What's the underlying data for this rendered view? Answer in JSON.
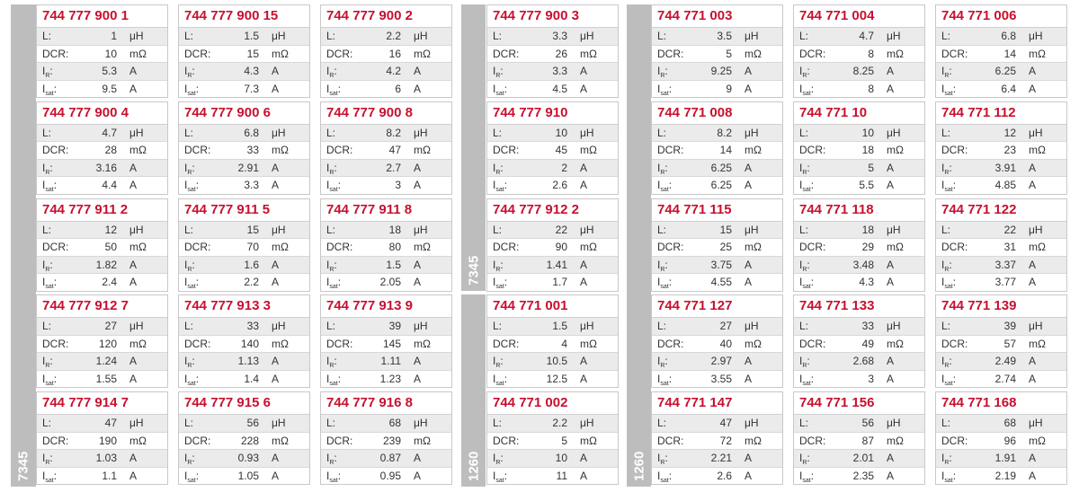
{
  "row_labels": {
    "L": "L:",
    "DCR": "DCR:",
    "IR_main": "I",
    "IR_sub": "R",
    "Isat_main": "I",
    "Isat_sub": "sat",
    "colon": ":"
  },
  "units": {
    "L": "μH",
    "DCR": "mΩ",
    "IR": "A",
    "Isat": "A"
  },
  "colors": {
    "part_number": "#c8102e",
    "sidebar": "#bdbdbd",
    "stripe": "#ebebeb"
  },
  "sidebars": [
    {
      "label": "7345"
    },
    {
      "label": "7345"
    },
    {
      "label": "1260"
    },
    {
      "label": "1260"
    }
  ],
  "groups": [
    {
      "cards": [
        {
          "part": "744 777 900 1",
          "L": "1",
          "DCR": "10",
          "IR": "5.3",
          "Isat": "9.5"
        },
        {
          "part": "744 777 900 15",
          "L": "1.5",
          "DCR": "15",
          "IR": "4.3",
          "Isat": "7.3"
        },
        {
          "part": "744 777 900 2",
          "L": "2.2",
          "DCR": "16",
          "IR": "4.2",
          "Isat": "6"
        },
        {
          "part": "744 777 900 4",
          "L": "4.7",
          "DCR": "28",
          "IR": "3.16",
          "Isat": "4.4"
        },
        {
          "part": "744 777 900 6",
          "L": "6.8",
          "DCR": "33",
          "IR": "2.91",
          "Isat": "3.3"
        },
        {
          "part": "744 777 900 8",
          "L": "8.2",
          "DCR": "47",
          "IR": "2.7",
          "Isat": "3"
        },
        {
          "part": "744 777 911 2",
          "L": "12",
          "DCR": "50",
          "IR": "1.82",
          "Isat": "2.4"
        },
        {
          "part": "744 777 911 5",
          "L": "15",
          "DCR": "70",
          "IR": "1.6",
          "Isat": "2.2"
        },
        {
          "part": "744 777 911 8",
          "L": "18",
          "DCR": "80",
          "IR": "1.5",
          "Isat": "2.05"
        },
        {
          "part": "744 777 912 7",
          "L": "27",
          "DCR": "120",
          "IR": "1.24",
          "Isat": "1.55"
        },
        {
          "part": "744 777 913 3",
          "L": "33",
          "DCR": "140",
          "IR": "1.13",
          "Isat": "1.4"
        },
        {
          "part": "744 777 913 9",
          "L": "39",
          "DCR": "145",
          "IR": "1.11",
          "Isat": "1.23"
        },
        {
          "part": "744 777 914 7",
          "L": "47",
          "DCR": "190",
          "IR": "1.03",
          "Isat": "1.1"
        },
        {
          "part": "744 777 915 6",
          "L": "56",
          "DCR": "228",
          "IR": "0.93",
          "Isat": "1.05"
        },
        {
          "part": "744 777 916 8",
          "L": "68",
          "DCR": "239",
          "IR": "0.87",
          "Isat": "0.95"
        }
      ]
    },
    {
      "cards": [
        {
          "part": "744 777 900 3",
          "L": "3.3",
          "DCR": "26",
          "IR": "3.3",
          "Isat": "4.5"
        },
        {
          "part": "744 777 910",
          "L": "10",
          "DCR": "45",
          "IR": "2",
          "Isat": "2.6"
        },
        {
          "part": "744 777 912 2",
          "L": "22",
          "DCR": "90",
          "IR": "1.41",
          "Isat": "1.7"
        },
        {
          "part": "744 771 001",
          "L": "1.5",
          "DCR": "4",
          "IR": "10.5",
          "Isat": "12.5"
        },
        {
          "part": "744 771 002",
          "L": "2.2",
          "DCR": "5",
          "IR": "10",
          "Isat": "11"
        }
      ]
    },
    {
      "cards": [
        {
          "part": "744 771 003",
          "L": "3.5",
          "DCR": "5",
          "IR": "9.25",
          "Isat": "9"
        },
        {
          "part": "744 771 004",
          "L": "4.7",
          "DCR": "8",
          "IR": "8.25",
          "Isat": "8"
        },
        {
          "part": "744 771 006",
          "L": "6.8",
          "DCR": "14",
          "IR": "6.25",
          "Isat": "6.4"
        },
        {
          "part": "744 771 008",
          "L": "8.2",
          "DCR": "14",
          "IR": "6.25",
          "Isat": "6.25"
        },
        {
          "part": "744 771 10",
          "L": "10",
          "DCR": "18",
          "IR": "5",
          "Isat": "5.5"
        },
        {
          "part": "744 771 112",
          "L": "12",
          "DCR": "23",
          "IR": "3.91",
          "Isat": "4.85"
        },
        {
          "part": "744 771 115",
          "L": "15",
          "DCR": "25",
          "IR": "3.75",
          "Isat": "4.55"
        },
        {
          "part": "744 771 118",
          "L": "18",
          "DCR": "29",
          "IR": "3.48",
          "Isat": "4.3"
        },
        {
          "part": "744 771 122",
          "L": "22",
          "DCR": "31",
          "IR": "3.37",
          "Isat": "3.77"
        },
        {
          "part": "744 771 127",
          "L": "27",
          "DCR": "40",
          "IR": "2.97",
          "Isat": "3.55"
        },
        {
          "part": "744 771 133",
          "L": "33",
          "DCR": "49",
          "IR": "2.68",
          "Isat": "3"
        },
        {
          "part": "744 771 139",
          "L": "39",
          "DCR": "57",
          "IR": "2.49",
          "Isat": "2.74"
        },
        {
          "part": "744 771 147",
          "L": "47",
          "DCR": "72",
          "IR": "2.21",
          "Isat": "2.6"
        },
        {
          "part": "744 771 156",
          "L": "56",
          "DCR": "87",
          "IR": "2.01",
          "Isat": "2.35"
        },
        {
          "part": "744 771 168",
          "L": "68",
          "DCR": "96",
          "IR": "1.91",
          "Isat": "2.19"
        }
      ]
    }
  ]
}
